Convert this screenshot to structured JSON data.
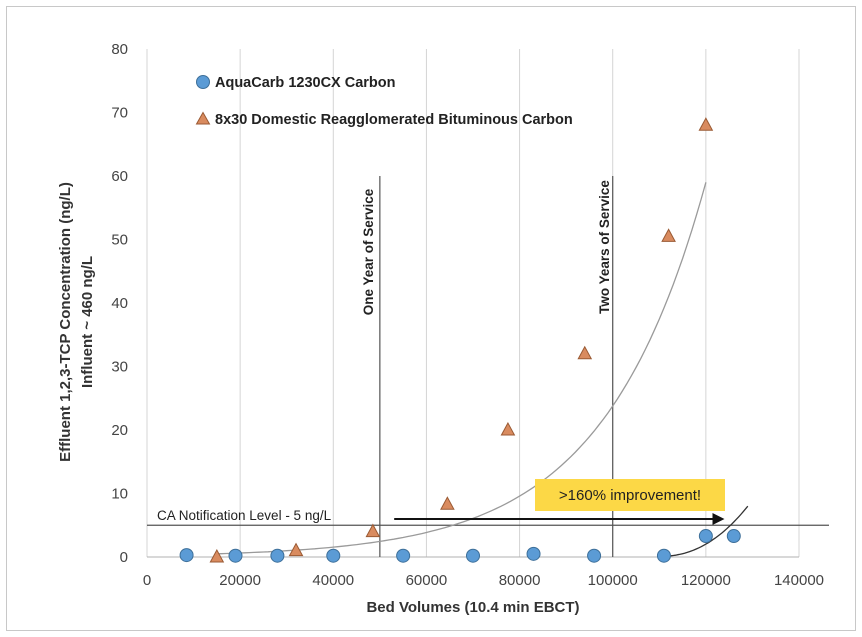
{
  "chart_data": {
    "type": "scatter",
    "xlabel": "Bed Volumes (10.4 min EBCT)",
    "ylabel_lines": [
      "Effluent 1,2,3-TCP Concentration (ng/L)",
      "Influent ~ 460 ng/L"
    ],
    "xlim": [
      0,
      140000
    ],
    "ylim": [
      0,
      80
    ],
    "x_ticks": [
      0,
      20000,
      40000,
      60000,
      80000,
      100000,
      120000,
      140000
    ],
    "y_ticks": [
      0,
      10,
      20,
      30,
      40,
      50,
      60,
      70,
      80
    ],
    "grid": "vertical",
    "legend_position": "top-left",
    "series": [
      {
        "name": "AquaCarb 1230CX Carbon",
        "marker": "circle",
        "color": "#5b9bd5",
        "points": [
          [
            8500,
            0.3
          ],
          [
            19000,
            0.2
          ],
          [
            28000,
            0.2
          ],
          [
            40000,
            0.2
          ],
          [
            55000,
            0.2
          ],
          [
            70000,
            0.2
          ],
          [
            83000,
            0.5
          ],
          [
            96000,
            0.2
          ],
          [
            111000,
            0.2
          ],
          [
            120000,
            3.3
          ],
          [
            126000,
            3.3
          ]
        ]
      },
      {
        "name": "8x30 Domestic Reagglomerated Bituminous Carbon",
        "marker": "triangle",
        "color": "#d98b5f",
        "points": [
          [
            15000,
            0
          ],
          [
            32000,
            1
          ],
          [
            48500,
            4
          ],
          [
            64500,
            8.3
          ],
          [
            77500,
            20
          ],
          [
            94000,
            32
          ],
          [
            112000,
            50.5
          ],
          [
            120000,
            68
          ]
        ]
      }
    ],
    "trendlines": [
      {
        "series": "8x30 Domestic Reagglomerated Bituminous Carbon",
        "from": 15000,
        "to": 120000
      },
      {
        "series": "AquaCarb 1230CX Carbon",
        "from": 110000,
        "to": 129000
      }
    ],
    "reference_lines": [
      {
        "orientation": "horizontal",
        "value": 5,
        "label": "CA Notification Level - 5 ng/L"
      },
      {
        "orientation": "vertical",
        "value": 50000,
        "label": "One Year of Service"
      },
      {
        "orientation": "vertical",
        "value": 100000,
        "label": "Two Years of Service"
      }
    ],
    "callout": {
      "text": ">160% improvement!",
      "background": "#fcd846",
      "arrow_from_x": 50500,
      "arrow_to_x": 124000,
      "arrow_y": 5.2
    }
  }
}
